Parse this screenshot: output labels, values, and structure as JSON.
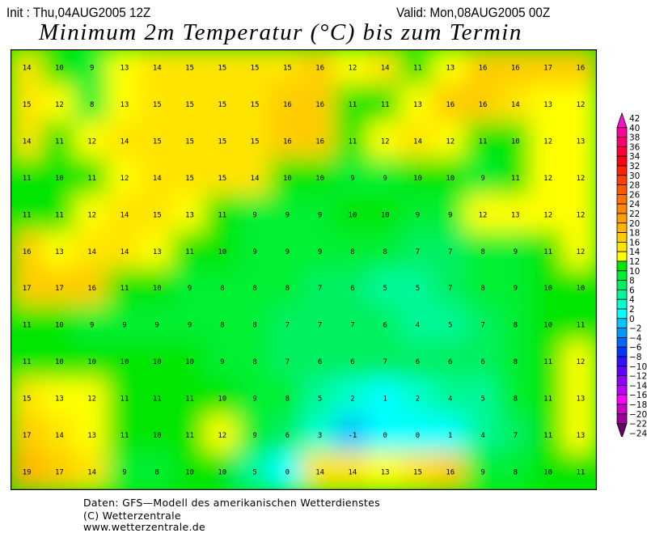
{
  "header": {
    "init": "Init : Thu,04AUG2005 12Z",
    "valid": "Valid: Mon,08AUG2005 00Z",
    "title": "Minimum 2m Temperatur (°C) bis zum Termin"
  },
  "map": {
    "grid_values": [
      [
        14,
        10,
        9,
        13,
        14,
        15,
        15,
        15,
        15,
        16,
        12,
        14,
        11,
        13,
        16,
        16,
        17,
        16
      ],
      [
        15,
        12,
        8,
        13,
        15,
        15,
        15,
        15,
        16,
        16,
        11,
        11,
        13,
        16,
        16,
        14,
        13,
        12
      ],
      [
        14,
        11,
        12,
        14,
        15,
        15,
        15,
        15,
        16,
        16,
        11,
        12,
        14,
        12,
        11,
        10,
        12,
        13
      ],
      [
        11,
        10,
        11,
        12,
        14,
        15,
        15,
        14,
        10,
        10,
        9,
        9,
        10,
        10,
        9,
        11,
        12,
        12
      ],
      [
        11,
        11,
        12,
        14,
        15,
        13,
        11,
        9,
        9,
        9,
        10,
        10,
        9,
        9,
        12,
        13,
        12,
        12
      ],
      [
        16,
        13,
        14,
        14,
        13,
        11,
        10,
        9,
        9,
        9,
        8,
        8,
        7,
        7,
        8,
        9,
        11,
        12
      ],
      [
        17,
        17,
        16,
        11,
        10,
        9,
        8,
        8,
        8,
        7,
        6,
        5,
        5,
        7,
        8,
        9,
        10,
        10
      ],
      [
        11,
        10,
        9,
        9,
        9,
        9,
        8,
        8,
        7,
        7,
        7,
        6,
        4,
        5,
        7,
        8,
        10,
        11
      ],
      [
        11,
        10,
        10,
        10,
        10,
        10,
        9,
        8,
        7,
        6,
        6,
        7,
        6,
        6,
        6,
        8,
        11,
        12
      ],
      [
        15,
        13,
        12,
        11,
        11,
        11,
        10,
        9,
        8,
        5,
        2,
        1,
        2,
        4,
        5,
        8,
        11,
        13
      ],
      [
        17,
        14,
        13,
        11,
        10,
        11,
        12,
        9,
        6,
        3,
        -1,
        0,
        0,
        1,
        4,
        7,
        11,
        13
      ],
      [
        19,
        17,
        14,
        9,
        8,
        10,
        10,
        5,
        0,
        14,
        14,
        13,
        15,
        16,
        9,
        8,
        10,
        11
      ]
    ]
  },
  "legend": {
    "labels": [
      "42",
      "40",
      "38",
      "36",
      "34",
      "32",
      "30",
      "28",
      "26",
      "24",
      "22",
      "20",
      "18",
      "16",
      "14",
      "12",
      "10",
      "8",
      "6",
      "4",
      "2",
      "0",
      "-2",
      "-4",
      "-6",
      "-8",
      "-10",
      "-12",
      "-14",
      "-16",
      "-18",
      "-20",
      "-22",
      "-24"
    ],
    "colors": [
      "#ff10c8",
      "#ff0098",
      "#ff0068",
      "#ff0038",
      "#ff0010",
      "#ff2000",
      "#ff4000",
      "#ff5800",
      "#ff7000",
      "#ff8800",
      "#ffa000",
      "#ffb400",
      "#ffcc00",
      "#ffe400",
      "#ffff00",
      "#00e600",
      "#00f030",
      "#00f060",
      "#00f898",
      "#00ffd0",
      "#00ffff",
      "#00c8ff",
      "#0098ff",
      "#0068ff",
      "#0038ff",
      "#3010ff",
      "#6000ff",
      "#9000ff",
      "#c000ff",
      "#ff00ff",
      "#c800c8",
      "#980098",
      "#680068"
    ]
  },
  "footer": {
    "line1": "Daten: GFS—Modell des amerikanischen Wetterdienstes",
    "line2": "(C) Wetterzentrale",
    "line3": "www.wetterzentrale.de"
  }
}
